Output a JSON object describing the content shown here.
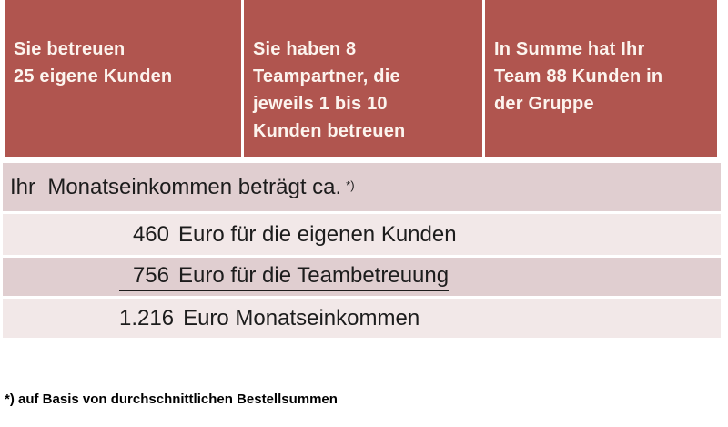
{
  "colors": {
    "header_background": "#b0554f",
    "header_text": "#fcf4ee",
    "row_dark": "#e0ced0",
    "row_light": "#f2e8e8",
    "body_text": "#1c1c1c"
  },
  "header": {
    "cells": [
      {
        "text": "Sie betreuen\n25 eigene Kunden"
      },
      {
        "text": "Sie haben 8\nTeampartner, die\njeweils 1 bis 10\nKunden betreuen"
      },
      {
        "text": "In Summe hat Ihr\nTeam 88 Kunden in\nder Gruppe"
      }
    ]
  },
  "income": {
    "intro": {
      "text": "Ihr  Monatseinkommen beträgt ca.",
      "marker": "*)"
    },
    "rows": [
      {
        "amount": "460",
        "text": "Euro für die eigenen Kunden"
      },
      {
        "amount": "756",
        "text": "Euro für die Teambetreuung"
      },
      {
        "amount": "1.216",
        "text": "Euro Monatseinkommen"
      }
    ]
  },
  "footnote": {
    "marker": "*)",
    "text": "auf Basis von durchschnittlichen Bestellsummen"
  }
}
